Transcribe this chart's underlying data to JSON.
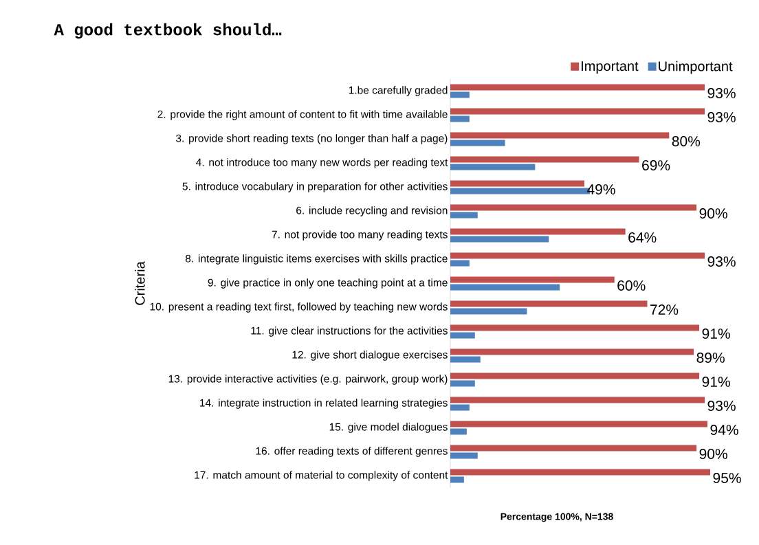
{
  "chart_data": {
    "type": "bar",
    "orientation": "horizontal",
    "title": "A good textbook should…",
    "xlabel": "Percentage 100%, N=138",
    "ylabel": "Criteria",
    "categories": [
      "1.be carefully graded",
      "2. provide the right amount of content to fit with time available",
      "3. provide short reading texts (no longer than half a page)",
      "4. not introduce too many new words per reading text",
      "5. introduce vocabulary in preparation for other activities",
      "6. include recycling and revision",
      "7. not provide too many reading texts",
      "8. integrate linguistic items exercises with skills practice",
      "9. give practice in only one teaching point at a time",
      "10. present a reading text first, followed by teaching new words",
      "11. give clear instructions for the activities",
      "12. give short dialogue exercises",
      "13. provide interactive activities (e.g. pairwork, group work)",
      "14. integrate instruction in related learning strategies",
      "15. give model dialogues",
      "16. offer reading texts of different genres",
      "17. match amount of material to complexity of content"
    ],
    "series": [
      {
        "name": "Important",
        "color": "#c0504d",
        "values": [
          93,
          93,
          80,
          69,
          49,
          90,
          64,
          93,
          60,
          72,
          91,
          89,
          91,
          93,
          94,
          90,
          95
        ],
        "value_labels": [
          "93%",
          "93%",
          "80%",
          "69%",
          "49%",
          "90%",
          "64%",
          "93%",
          "60%",
          "72%",
          "91%",
          "89%",
          "91%",
          "93%",
          "94%",
          "90%",
          "95%"
        ]
      },
      {
        "name": "Unimportant",
        "color": "#4f81bd",
        "values": [
          7,
          7,
          20,
          31,
          51,
          10,
          36,
          7,
          40,
          28,
          9,
          11,
          9,
          7,
          6,
          10,
          5
        ]
      }
    ],
    "tick_labels": "y",
    "legend": "top right"
  }
}
